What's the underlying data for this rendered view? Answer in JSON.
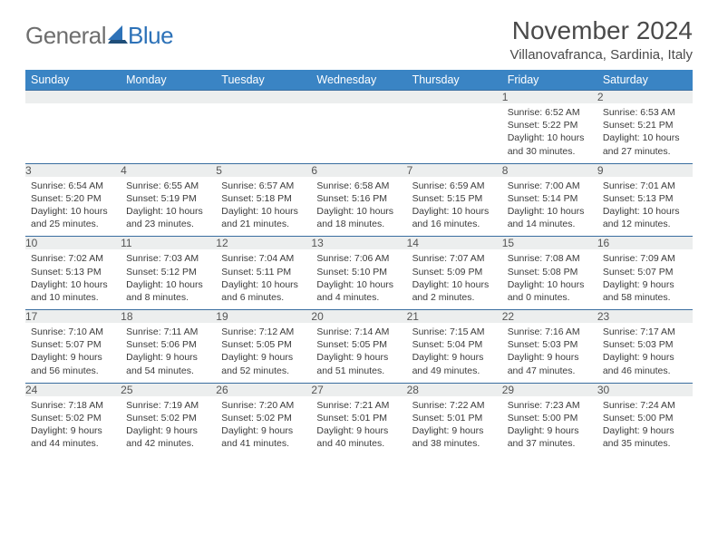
{
  "brand": {
    "part1": "General",
    "part2": "Blue"
  },
  "title": "November 2024",
  "location": "Villanovafranca, Sardinia, Italy",
  "colors": {
    "header_bg": "#3a84c4",
    "header_text": "#ffffff",
    "daynum_bg": "#eceeee",
    "daynum_text": "#555555",
    "border": "#3a6ea0",
    "title_text": "#4a4a4a",
    "body_text": "#3b3b3b",
    "logo_gray": "#6e6e6e",
    "logo_blue": "#2d72b8"
  },
  "day_headers": [
    "Sunday",
    "Monday",
    "Tuesday",
    "Wednesday",
    "Thursday",
    "Friday",
    "Saturday"
  ],
  "weeks": [
    [
      {
        "n": "",
        "lines": []
      },
      {
        "n": "",
        "lines": []
      },
      {
        "n": "",
        "lines": []
      },
      {
        "n": "",
        "lines": []
      },
      {
        "n": "",
        "lines": []
      },
      {
        "n": "1",
        "lines": [
          "Sunrise: 6:52 AM",
          "Sunset: 5:22 PM",
          "Daylight: 10 hours",
          "and 30 minutes."
        ]
      },
      {
        "n": "2",
        "lines": [
          "Sunrise: 6:53 AM",
          "Sunset: 5:21 PM",
          "Daylight: 10 hours",
          "and 27 minutes."
        ]
      }
    ],
    [
      {
        "n": "3",
        "lines": [
          "Sunrise: 6:54 AM",
          "Sunset: 5:20 PM",
          "Daylight: 10 hours",
          "and 25 minutes."
        ]
      },
      {
        "n": "4",
        "lines": [
          "Sunrise: 6:55 AM",
          "Sunset: 5:19 PM",
          "Daylight: 10 hours",
          "and 23 minutes."
        ]
      },
      {
        "n": "5",
        "lines": [
          "Sunrise: 6:57 AM",
          "Sunset: 5:18 PM",
          "Daylight: 10 hours",
          "and 21 minutes."
        ]
      },
      {
        "n": "6",
        "lines": [
          "Sunrise: 6:58 AM",
          "Sunset: 5:16 PM",
          "Daylight: 10 hours",
          "and 18 minutes."
        ]
      },
      {
        "n": "7",
        "lines": [
          "Sunrise: 6:59 AM",
          "Sunset: 5:15 PM",
          "Daylight: 10 hours",
          "and 16 minutes."
        ]
      },
      {
        "n": "8",
        "lines": [
          "Sunrise: 7:00 AM",
          "Sunset: 5:14 PM",
          "Daylight: 10 hours",
          "and 14 minutes."
        ]
      },
      {
        "n": "9",
        "lines": [
          "Sunrise: 7:01 AM",
          "Sunset: 5:13 PM",
          "Daylight: 10 hours",
          "and 12 minutes."
        ]
      }
    ],
    [
      {
        "n": "10",
        "lines": [
          "Sunrise: 7:02 AM",
          "Sunset: 5:13 PM",
          "Daylight: 10 hours",
          "and 10 minutes."
        ]
      },
      {
        "n": "11",
        "lines": [
          "Sunrise: 7:03 AM",
          "Sunset: 5:12 PM",
          "Daylight: 10 hours",
          "and 8 minutes."
        ]
      },
      {
        "n": "12",
        "lines": [
          "Sunrise: 7:04 AM",
          "Sunset: 5:11 PM",
          "Daylight: 10 hours",
          "and 6 minutes."
        ]
      },
      {
        "n": "13",
        "lines": [
          "Sunrise: 7:06 AM",
          "Sunset: 5:10 PM",
          "Daylight: 10 hours",
          "and 4 minutes."
        ]
      },
      {
        "n": "14",
        "lines": [
          "Sunrise: 7:07 AM",
          "Sunset: 5:09 PM",
          "Daylight: 10 hours",
          "and 2 minutes."
        ]
      },
      {
        "n": "15",
        "lines": [
          "Sunrise: 7:08 AM",
          "Sunset: 5:08 PM",
          "Daylight: 10 hours",
          "and 0 minutes."
        ]
      },
      {
        "n": "16",
        "lines": [
          "Sunrise: 7:09 AM",
          "Sunset: 5:07 PM",
          "Daylight: 9 hours",
          "and 58 minutes."
        ]
      }
    ],
    [
      {
        "n": "17",
        "lines": [
          "Sunrise: 7:10 AM",
          "Sunset: 5:07 PM",
          "Daylight: 9 hours",
          "and 56 minutes."
        ]
      },
      {
        "n": "18",
        "lines": [
          "Sunrise: 7:11 AM",
          "Sunset: 5:06 PM",
          "Daylight: 9 hours",
          "and 54 minutes."
        ]
      },
      {
        "n": "19",
        "lines": [
          "Sunrise: 7:12 AM",
          "Sunset: 5:05 PM",
          "Daylight: 9 hours",
          "and 52 minutes."
        ]
      },
      {
        "n": "20",
        "lines": [
          "Sunrise: 7:14 AM",
          "Sunset: 5:05 PM",
          "Daylight: 9 hours",
          "and 51 minutes."
        ]
      },
      {
        "n": "21",
        "lines": [
          "Sunrise: 7:15 AM",
          "Sunset: 5:04 PM",
          "Daylight: 9 hours",
          "and 49 minutes."
        ]
      },
      {
        "n": "22",
        "lines": [
          "Sunrise: 7:16 AM",
          "Sunset: 5:03 PM",
          "Daylight: 9 hours",
          "and 47 minutes."
        ]
      },
      {
        "n": "23",
        "lines": [
          "Sunrise: 7:17 AM",
          "Sunset: 5:03 PM",
          "Daylight: 9 hours",
          "and 46 minutes."
        ]
      }
    ],
    [
      {
        "n": "24",
        "lines": [
          "Sunrise: 7:18 AM",
          "Sunset: 5:02 PM",
          "Daylight: 9 hours",
          "and 44 minutes."
        ]
      },
      {
        "n": "25",
        "lines": [
          "Sunrise: 7:19 AM",
          "Sunset: 5:02 PM",
          "Daylight: 9 hours",
          "and 42 minutes."
        ]
      },
      {
        "n": "26",
        "lines": [
          "Sunrise: 7:20 AM",
          "Sunset: 5:02 PM",
          "Daylight: 9 hours",
          "and 41 minutes."
        ]
      },
      {
        "n": "27",
        "lines": [
          "Sunrise: 7:21 AM",
          "Sunset: 5:01 PM",
          "Daylight: 9 hours",
          "and 40 minutes."
        ]
      },
      {
        "n": "28",
        "lines": [
          "Sunrise: 7:22 AM",
          "Sunset: 5:01 PM",
          "Daylight: 9 hours",
          "and 38 minutes."
        ]
      },
      {
        "n": "29",
        "lines": [
          "Sunrise: 7:23 AM",
          "Sunset: 5:00 PM",
          "Daylight: 9 hours",
          "and 37 minutes."
        ]
      },
      {
        "n": "30",
        "lines": [
          "Sunrise: 7:24 AM",
          "Sunset: 5:00 PM",
          "Daylight: 9 hours",
          "and 35 minutes."
        ]
      }
    ]
  ]
}
